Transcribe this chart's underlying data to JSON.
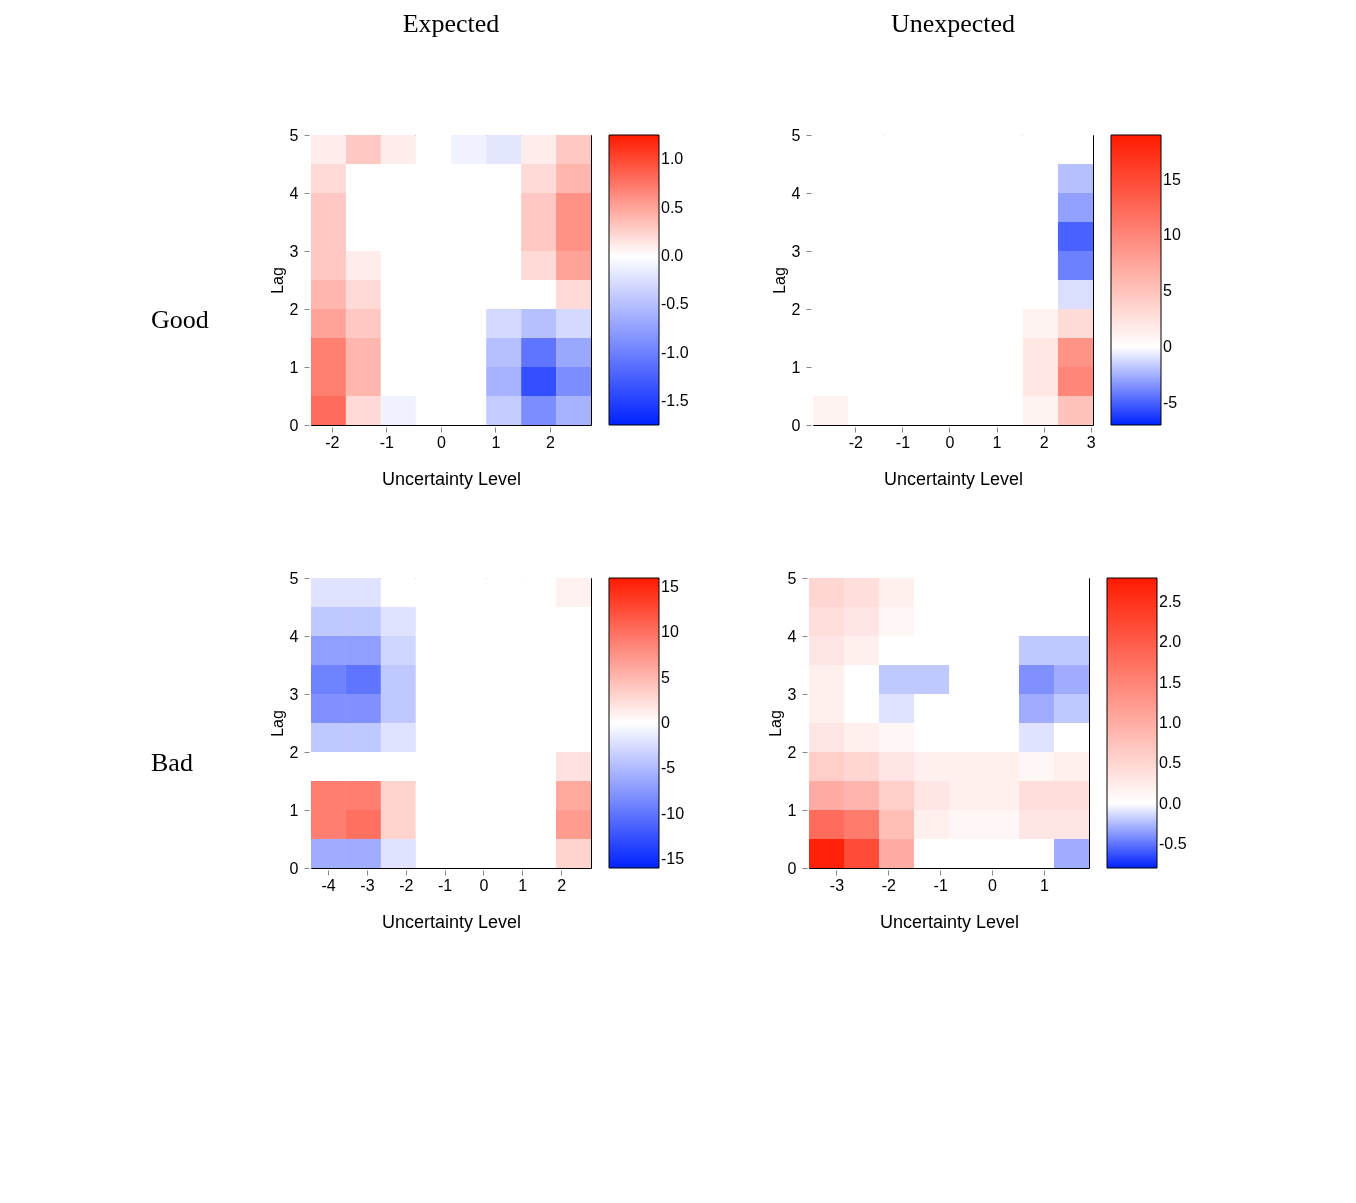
{
  "chart_data": [
    {
      "type": "heatmap",
      "title": "Expected",
      "annotations": [
        "Good"
      ],
      "xlabel": "Uncertainty Level",
      "ylabel": "Lag",
      "x": [
        -2.06,
        -1.42,
        -0.78,
        -0.14,
        0.51,
        1.15,
        1.79,
        2.43
      ],
      "y": [
        4.75,
        4.25,
        3.75,
        3.25,
        2.75,
        2.25,
        1.75,
        1.25,
        0.75,
        0.25
      ],
      "xlim": [
        -2.38,
        2.75
      ],
      "xticks": [
        -2,
        -1,
        0,
        1,
        2
      ],
      "ylim": [
        0,
        5
      ],
      "yticks": [
        0,
        1,
        2,
        3,
        4,
        5
      ],
      "clim": [
        -1.75,
        1.25
      ],
      "cticks": [
        {
          "value": 1,
          "label": "1.0"
        },
        {
          "value": 0.5,
          "label": "0.5"
        },
        {
          "value": 0,
          "label": "0.0"
        },
        {
          "value": -0.5,
          "label": "-0.5"
        },
        {
          "value": -1,
          "label": "-1.0"
        },
        {
          "value": -1.5,
          "label": "-1.5"
        }
      ],
      "grid": false,
      "cells": [
        [
          0.1,
          0.3,
          0.1,
          0,
          -0.1,
          -0.2,
          0.1,
          0.3
        ],
        [
          0.2,
          0,
          0,
          0,
          0,
          0,
          0.2,
          0.4
        ],
        [
          0.3,
          0,
          0,
          0,
          0,
          0,
          0.3,
          0.6
        ],
        [
          0.3,
          0,
          0,
          0,
          0,
          0,
          0.3,
          0.6
        ],
        [
          0.3,
          0.1,
          0,
          0,
          0,
          0,
          0.2,
          0.5
        ],
        [
          0.4,
          0.2,
          0,
          0,
          0,
          0,
          0,
          0.2
        ],
        [
          0.5,
          0.3,
          0,
          0,
          0,
          -0.3,
          -0.5,
          -0.3
        ],
        [
          0.7,
          0.4,
          0,
          0,
          0,
          -0.5,
          -1.1,
          -0.7
        ],
        [
          0.7,
          0.4,
          0,
          0,
          0,
          -0.6,
          -1.4,
          -0.9
        ],
        [
          0.8,
          0.2,
          -0.1,
          0,
          0,
          -0.4,
          -0.9,
          -0.6
        ]
      ]
    },
    {
      "type": "heatmap",
      "title": "Unexpected",
      "xlabel": "Uncertainty Level",
      "ylabel": "Lag",
      "x": [
        -2.53,
        -1.78,
        -1.04,
        -0.3,
        0.45,
        1.19,
        1.93,
        2.68
      ],
      "y": [
        4.75,
        4.25,
        3.75,
        3.25,
        2.75,
        2.25,
        1.75,
        1.25,
        0.75,
        0.25
      ],
      "xlim": [
        -2.9,
        3.05
      ],
      "xticks": [
        -2,
        -1,
        0,
        1,
        2,
        3
      ],
      "ylim": [
        0,
        5
      ],
      "yticks": [
        0,
        1,
        2,
        3,
        4,
        5
      ],
      "clim": [
        -7,
        19
      ],
      "cticks": [
        15,
        10,
        5,
        0,
        -5
      ],
      "grid": false,
      "cells": [
        [
          0,
          0,
          0,
          0,
          0,
          0,
          0,
          0
        ],
        [
          0,
          0,
          0,
          0,
          0,
          0,
          0,
          -2
        ],
        [
          0,
          0,
          0,
          0,
          0,
          0,
          0,
          -3
        ],
        [
          0,
          0,
          0,
          0,
          0,
          0,
          0,
          -5
        ],
        [
          0,
          0,
          0,
          0,
          0,
          0,
          0,
          -4
        ],
        [
          0,
          0,
          0,
          0,
          0,
          0,
          0,
          -1
        ],
        [
          0,
          0,
          0,
          0,
          0,
          0,
          1,
          3
        ],
        [
          0,
          0,
          0,
          0,
          0,
          0,
          2,
          9
        ],
        [
          0,
          0,
          0,
          0,
          0,
          0,
          2,
          10
        ],
        [
          1,
          0,
          0,
          0,
          0,
          0,
          1,
          5
        ]
      ]
    },
    {
      "type": "heatmap",
      "annotations": [
        "Bad"
      ],
      "xlabel": "Uncertainty Level",
      "ylabel": "Lag",
      "x": [
        -3.99,
        -3.09,
        -2.19,
        -1.29,
        -0.38,
        0.52,
        1.42,
        2.32
      ],
      "y": [
        4.75,
        4.25,
        3.75,
        3.25,
        2.75,
        2.25,
        1.75,
        1.25,
        0.75,
        0.25
      ],
      "xlim": [
        -4.44,
        2.77
      ],
      "xticks": [
        -4,
        -3,
        -2,
        -1,
        0,
        1,
        2
      ],
      "ylim": [
        0,
        5
      ],
      "yticks": [
        0,
        1,
        2,
        3,
        4,
        5
      ],
      "clim": [
        -16,
        16
      ],
      "cticks": [
        15,
        10,
        5,
        0,
        -5,
        -10,
        -15
      ],
      "grid": false,
      "cells": [
        [
          -2,
          -2,
          0,
          0,
          0,
          0,
          0,
          1
        ],
        [
          -4,
          -4,
          -2,
          0,
          0,
          0,
          0,
          0
        ],
        [
          -7,
          -7,
          -3,
          0,
          0,
          0,
          0,
          0
        ],
        [
          -9,
          -10,
          -4,
          0,
          0,
          0,
          0,
          0
        ],
        [
          -8,
          -8,
          -4,
          0,
          0,
          0,
          0,
          0
        ],
        [
          -4,
          -4,
          -2,
          0,
          0,
          0,
          0,
          0
        ],
        [
          0,
          0,
          0,
          0,
          0,
          0,
          0,
          2
        ],
        [
          9,
          9,
          3,
          0,
          0,
          0,
          0,
          6
        ],
        [
          9,
          10,
          3,
          0,
          0,
          0,
          0,
          7
        ],
        [
          -6,
          -6,
          -2,
          0,
          0,
          0,
          0,
          3
        ]
      ]
    },
    {
      "type": "heatmap",
      "xlabel": "Uncertainty Level",
      "ylabel": "Lag",
      "x": [
        -3.19,
        -2.52,
        -1.84,
        -1.17,
        -0.49,
        0.18,
        0.86,
        1.53
      ],
      "y": [
        4.75,
        4.25,
        3.75,
        3.25,
        2.75,
        2.25,
        1.75,
        1.25,
        0.75,
        0.25
      ],
      "xlim": [
        -3.53,
        1.87
      ],
      "xticks": [
        -3,
        -2,
        -1,
        0,
        1
      ],
      "ylim": [
        0,
        5
      ],
      "yticks": [
        0,
        1,
        2,
        3,
        4,
        5
      ],
      "clim": [
        -0.8,
        2.8
      ],
      "cticks": [
        {
          "value": 2.5,
          "label": "2.5"
        },
        {
          "value": 2,
          "label": "2.0"
        },
        {
          "value": 1.5,
          "label": "1.5"
        },
        {
          "value": 1,
          "label": "1.0"
        },
        {
          "value": 0.5,
          "label": "0.5"
        },
        {
          "value": 0,
          "label": "0.0"
        },
        {
          "value": -0.5,
          "label": "-0.5"
        }
      ],
      "grid": false,
      "cells": [
        [
          0.5,
          0.4,
          0.2,
          0,
          0,
          0,
          0,
          0
        ],
        [
          0.4,
          0.3,
          0.1,
          0,
          0,
          0,
          0,
          0
        ],
        [
          0.3,
          0.2,
          0,
          0,
          0,
          0,
          -0.2,
          -0.2
        ],
        [
          0.2,
          0,
          -0.2,
          -0.2,
          0,
          0,
          -0.4,
          -0.3
        ],
        [
          0.2,
          0,
          -0.1,
          0,
          0,
          0,
          -0.3,
          -0.2
        ],
        [
          0.3,
          0.2,
          0.1,
          0,
          0,
          0,
          -0.1,
          0
        ],
        [
          0.6,
          0.5,
          0.3,
          0.2,
          0.2,
          0.2,
          0.1,
          0.2
        ],
        [
          1.0,
          0.9,
          0.6,
          0.3,
          0.2,
          0.2,
          0.4,
          0.4
        ],
        [
          1.8,
          1.6,
          0.8,
          0.2,
          0.1,
          0.1,
          0.3,
          0.3
        ],
        [
          2.7,
          2.2,
          1.0,
          0,
          0,
          0,
          0,
          -0.3
        ]
      ]
    }
  ]
}
